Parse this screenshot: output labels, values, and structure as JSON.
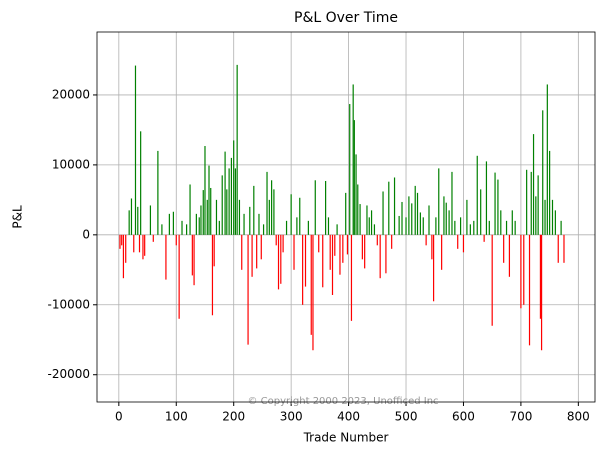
{
  "chart_data": {
    "type": "bar",
    "title": "P&L Over Time",
    "x_label": "Trade Number",
    "y_label": "P&L",
    "annotation": "© Copyright 2000 2023, Unofficed Inc",
    "positive_color": "#008000",
    "negative_color": "#ff0000",
    "grid": true,
    "xlim": [
      -38,
      829
    ],
    "ylim": [
      -23900,
      29000
    ],
    "xticks": [
      0,
      100,
      200,
      300,
      400,
      500,
      600,
      700,
      800
    ],
    "yticks": [
      -20000,
      -10000,
      0,
      10000,
      20000
    ],
    "x": [
      2,
      5,
      8,
      12,
      18,
      22,
      26,
      29,
      33,
      36,
      38,
      42,
      45,
      55,
      60,
      68,
      75,
      82,
      88,
      95,
      100,
      105,
      110,
      118,
      124,
      128,
      131,
      135,
      140,
      143,
      147,
      150,
      154,
      157,
      160,
      163,
      166,
      170,
      175,
      180,
      185,
      188,
      192,
      196,
      200,
      203,
      206,
      210,
      214,
      218,
      225,
      228,
      232,
      235,
      240,
      244,
      248,
      252,
      258,
      262,
      266,
      270,
      274,
      278,
      282,
      286,
      292,
      300,
      305,
      310,
      315,
      320,
      325,
      330,
      335,
      338,
      342,
      348,
      355,
      360,
      365,
      368,
      372,
      376,
      380,
      385,
      390,
      395,
      398,
      402,
      405,
      408,
      410,
      413,
      416,
      420,
      424,
      428,
      432,
      436,
      440,
      445,
      450,
      455,
      460,
      465,
      470,
      475,
      480,
      488,
      493,
      500,
      505,
      510,
      516,
      520,
      525,
      530,
      535,
      540,
      545,
      548,
      552,
      557,
      562,
      566,
      570,
      575,
      580,
      585,
      590,
      595,
      600,
      606,
      612,
      618,
      624,
      630,
      636,
      640,
      645,
      650,
      655,
      660,
      665,
      670,
      675,
      680,
      685,
      690,
      700,
      705,
      710,
      715,
      718,
      722,
      726,
      730,
      734,
      736,
      738,
      742,
      746,
      750,
      755,
      760,
      765,
      770,
      775
    ],
    "values": [
      -2000,
      -1500,
      -6200,
      -4000,
      3500,
      5200,
      -2500,
      24200,
      4000,
      -2500,
      14800,
      -3500,
      -3000,
      4200,
      -1000,
      12000,
      1500,
      -6400,
      3000,
      3300,
      -1500,
      -12000,
      2000,
      1500,
      7200,
      -5800,
      -7200,
      3000,
      2500,
      4200,
      6400,
      12700,
      5000,
      9900,
      6700,
      -11500,
      -4500,
      5000,
      2000,
      8500,
      11900,
      6500,
      9500,
      11000,
      13500,
      9500,
      24300,
      5000,
      -5000,
      3000,
      -15700,
      4000,
      -6000,
      7000,
      -4800,
      3000,
      -3500,
      1500,
      9000,
      5000,
      7800,
      6500,
      -1500,
      -7800,
      -7000,
      -2500,
      2000,
      5800,
      -5000,
      2500,
      5300,
      -10000,
      -7400,
      2000,
      -14300,
      -16500,
      7800,
      -2500,
      -7500,
      7700,
      2500,
      -5000,
      -8600,
      -3000,
      1500,
      -5700,
      -4000,
      6000,
      -2800,
      18700,
      -12300,
      21500,
      16400,
      11500,
      7200,
      4400,
      -3500,
      -4800,
      4200,
      2500,
      3500,
      1500,
      -1500,
      -6200,
      6200,
      -5500,
      7600,
      -2000,
      8200,
      2700,
      4700,
      2500,
      5500,
      4500,
      7000,
      6000,
      3200,
      2500,
      -1500,
      4200,
      -3500,
      -9500,
      2500,
      9500,
      -5000,
      5500,
      4600,
      3500,
      9000,
      2000,
      -2000,
      2500,
      -2500,
      5000,
      1500,
      2000,
      11300,
      6500,
      -1000,
      10500,
      2000,
      -13000,
      8900,
      7900,
      3500,
      -4000,
      2000,
      -6000,
      3500,
      2000,
      -10500,
      -10000,
      9300,
      -15800,
      9000,
      14400,
      5500,
      8500,
      -12000,
      -16500,
      17800,
      5000,
      21500,
      12000,
      5000,
      3500,
      -4000,
      2000,
      -4000
    ]
  }
}
